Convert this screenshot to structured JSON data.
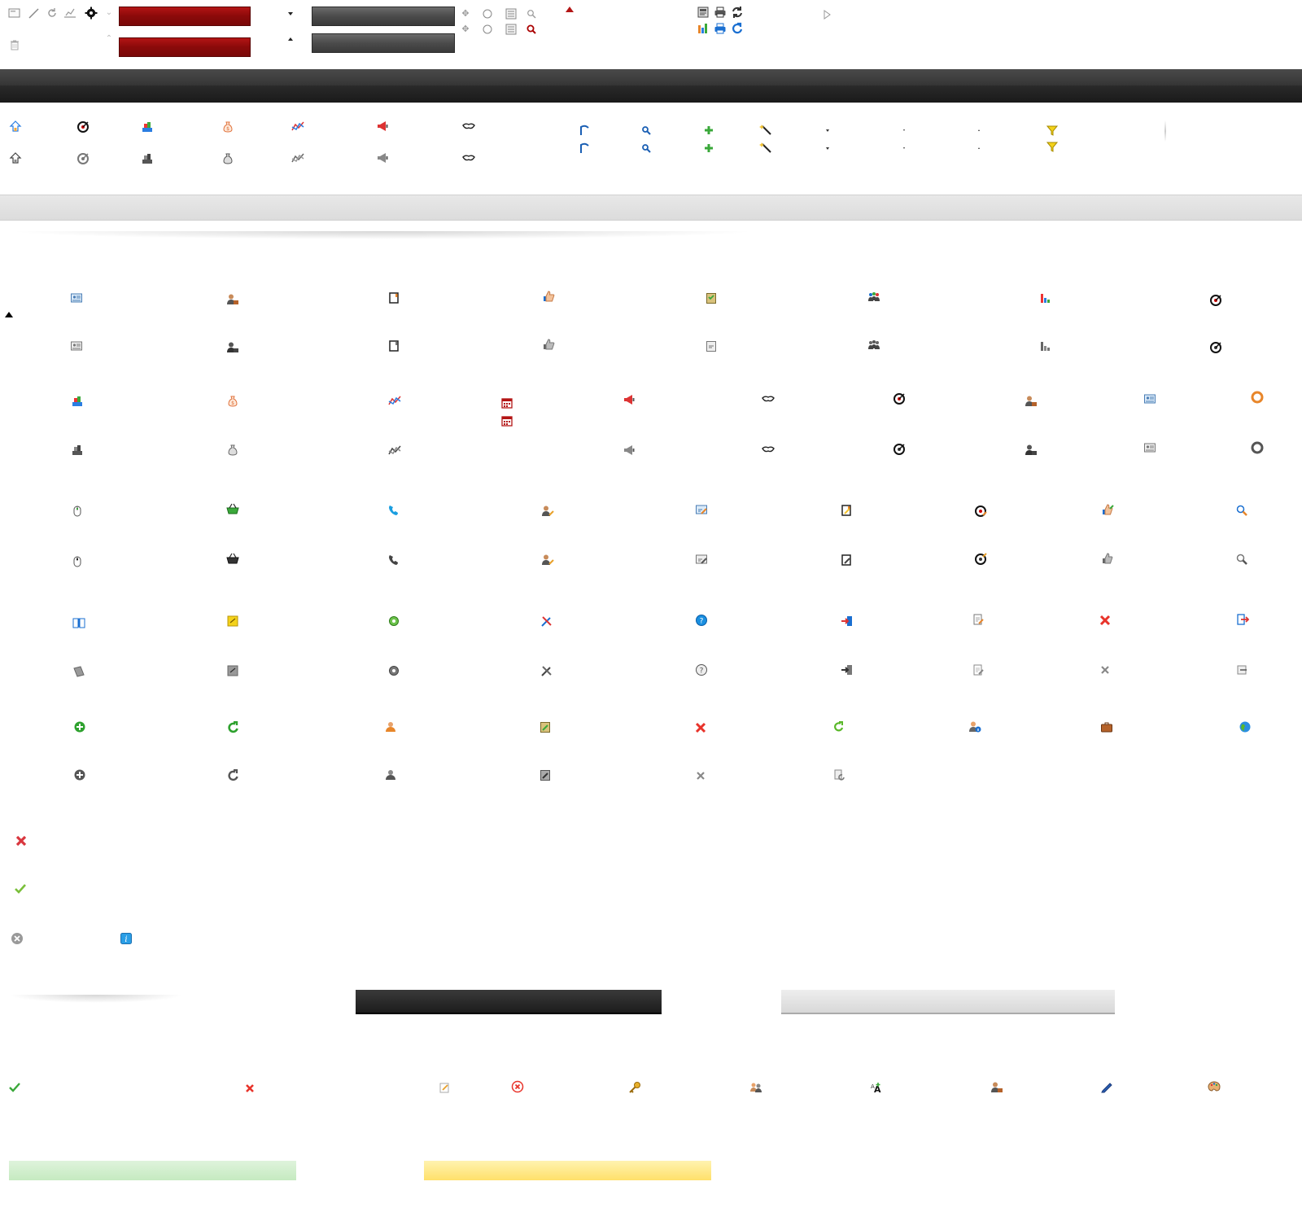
{
  "colors": {
    "red": "#b31515",
    "dark": "#3a3a3a",
    "grey": "#e0e0e0",
    "green": "#c5eac0",
    "yellow": "#ffe06a",
    "accent_blue": "#1a6fd1",
    "accent_orange": "#e8862a"
  },
  "toolbar_icons": [
    "frame-icon",
    "pen-icon",
    "refresh-icon",
    "edit-chart-icon",
    "gear-icon",
    "chevron-down-icon",
    "trash-icon",
    "chevron-up-icon",
    "arrow-down-icon",
    "arrow-up-icon",
    "cross-move-icon",
    "radio-icon",
    "list-icon",
    "magnifier-icon",
    "magnifier-red-icon",
    "red-up-triangle-icon",
    "report-icon",
    "print-icon",
    "sync-icon",
    "bar-chart-icon",
    "print-blue-icon",
    "redo-icon",
    "play-outline-icon"
  ],
  "nav_icons": [
    "home-icon",
    "target-icon",
    "sales-icon",
    "money-bag-icon",
    "stats-icon",
    "megaphone-icon",
    "handshake-icon"
  ],
  "action_icons": [
    "flag-icon",
    "zoom-icon",
    "add-icon",
    "wand-icon",
    "dropdown-icon",
    "dropdown-small-icon",
    "dropdown-up-icon",
    "filter-icon"
  ],
  "grid_rows": [
    [
      "contact-card-icon",
      "user-briefcase-icon",
      "notebook-icon",
      "thumbs-up-icon",
      "clipboard-icon",
      "group-icon",
      "bar-chart-icon",
      "target-icon"
    ],
    [
      "sales-icon",
      "money-bag-icon",
      "stats-icon",
      "calendar-icon",
      "megaphone-icon",
      "handshake-icon",
      "target-icon",
      "user-briefcase-icon",
      "contact-card-icon",
      "lifebuoy-icon"
    ],
    [
      "mouse-icon",
      "basket-icon",
      "phone-icon",
      "user-edit-icon",
      "card-edit-icon",
      "notebook-edit-icon",
      "target-edit-icon",
      "thumb-edit-icon",
      "search-icon"
    ],
    [
      "book-icon",
      "note-icon",
      "settings-icon",
      "tools-icon",
      "help-icon",
      "exit-icon",
      "edit-doc-icon",
      "close-icon",
      "logout-icon"
    ],
    [
      "add-circle-icon",
      "refresh-green-icon",
      "user-icon",
      "clipboard-edit-icon",
      "close-icon",
      "refresh-small-icon",
      "user-info-icon",
      "briefcase-icon",
      "globe-icon"
    ]
  ],
  "status_icons": [
    "error-icon",
    "success-icon",
    "cancel-circle-icon",
    "info-icon"
  ],
  "bottom_icons": [
    "check-icon",
    "delete-icon",
    "edit-note-icon",
    "error-circle-icon",
    "key-icon",
    "users-icon",
    "font-icon",
    "user-briefcase-icon",
    "pencil-icon",
    "palette-icon"
  ]
}
